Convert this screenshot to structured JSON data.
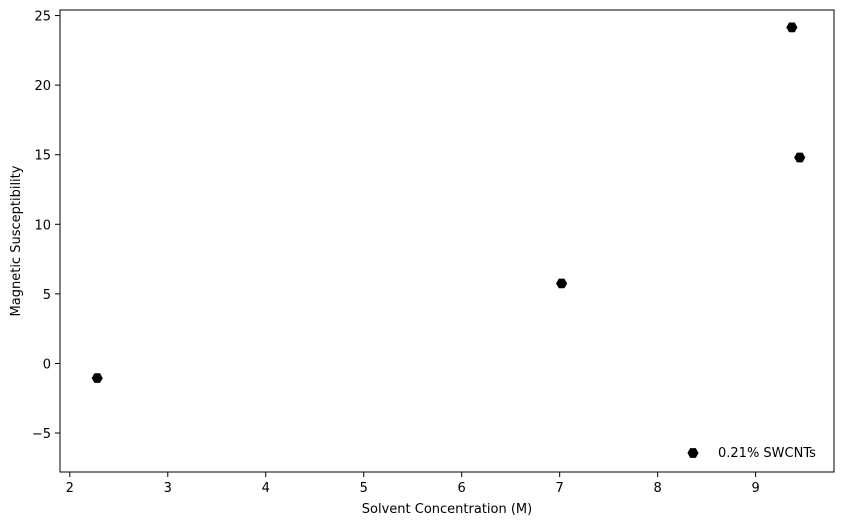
{
  "chart_data": {
    "type": "scatter",
    "title": "",
    "xlabel": "Solvent Concentration (M)",
    "ylabel": "Magnetic Susceptibility",
    "xlim": [
      1.9,
      9.8
    ],
    "ylim": [
      -7.8,
      25.4
    ],
    "xticks": [
      2,
      3,
      4,
      5,
      6,
      7,
      8,
      9
    ],
    "xtick_labels": [
      "2",
      "3",
      "4",
      "5",
      "6",
      "7",
      "8",
      "9"
    ],
    "yticks": [
      -5,
      0,
      5,
      10,
      15,
      20,
      25
    ],
    "ytick_labels": [
      "−5",
      "0",
      "5",
      "10",
      "15",
      "20",
      "25"
    ],
    "grid": false,
    "legend": {
      "placement": "lower-right",
      "entries": [
        "0.21% SWCNTs"
      ]
    },
    "series": [
      {
        "name": "0.21% SWCNTs",
        "color": "#000000",
        "marker": "hexagon",
        "points": [
          {
            "x": 2.28,
            "y": -1.05
          },
          {
            "x": 7.02,
            "y": 5.75
          },
          {
            "x": 9.37,
            "y": 24.15
          },
          {
            "x": 9.45,
            "y": 14.8
          }
        ]
      }
    ]
  }
}
